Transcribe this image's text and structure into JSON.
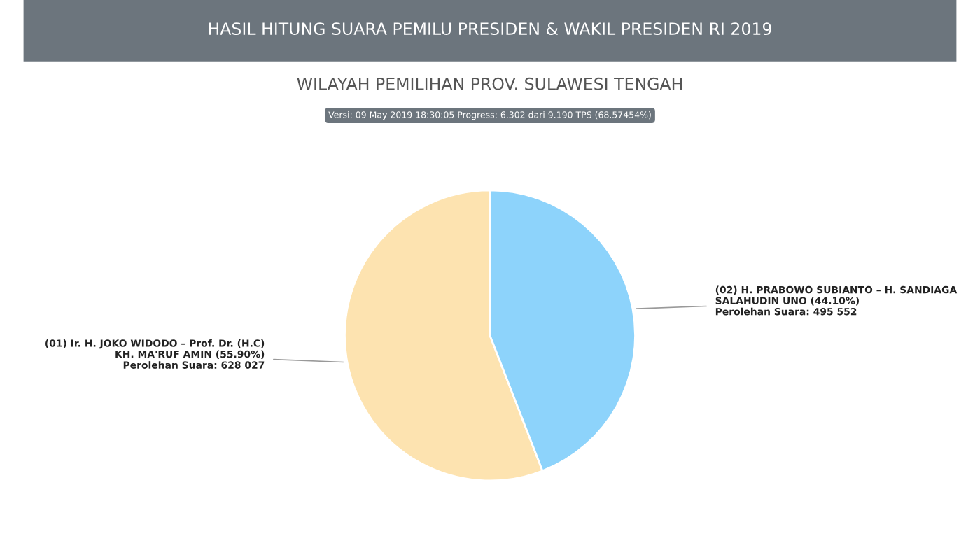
{
  "chart_data": {
    "type": "pie",
    "title": "HASIL HITUNG SUARA PEMILU PRESIDEN & WAKIL PRESIDEN RI 2019",
    "subtitle": "WILAYAH PEMILIHAN PROV. SULAWESI TENGAH",
    "annotations": [
      "Versi: 09 May 2019 18:30:05 Progress: 6.302 dari 9.190 TPS (68.57454%)"
    ],
    "categories": [
      "(01) Ir. H. JOKO WIDODO – Prof. Dr. (H.C)\nKH. MA'RUF AMIN (55.90%)",
      "(02) H. PRABOWO SUBIANTO – H. SANDIAGA\nSALAHUDIN UNO (44.10%)"
    ],
    "values": [
      628027,
      495552
    ],
    "value_labels": [
      "Perolehan Suara: 628 027",
      "Perolehan Suara: 495 552"
    ],
    "colors": [
      "#fde3b0",
      "#8dd3fb"
    ],
    "legend": false
  }
}
